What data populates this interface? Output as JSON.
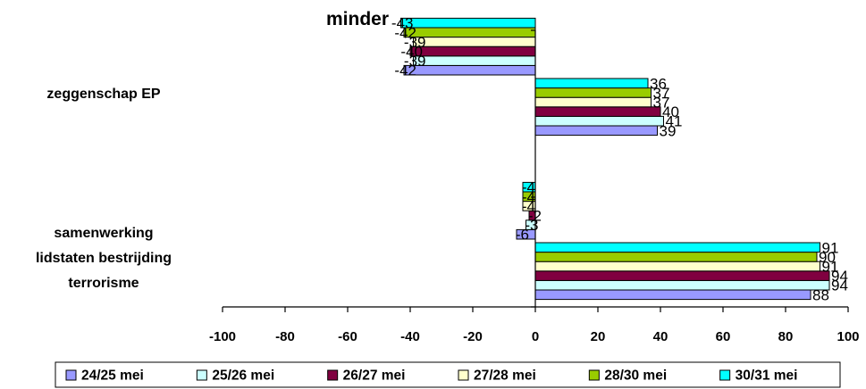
{
  "chart_data": {
    "type": "bar",
    "orientation": "horizontal",
    "title": "minder",
    "xlabel": "",
    "ylabel": "",
    "xlim": [
      -100,
      100
    ],
    "x_ticks": [
      -100,
      -80,
      -60,
      -40,
      -20,
      0,
      20,
      40,
      60,
      80,
      100
    ],
    "grid": false,
    "legend_position": "bottom",
    "categories": [
      {
        "label_lines": [
          "zeggenschap EP"
        ]
      },
      {
        "label_lines": [
          "samenwerking",
          "lidstaten bestrijding",
          "terrorisme"
        ]
      }
    ],
    "series": [
      {
        "name": "24/25 mei",
        "color": "#9999ff",
        "groups": [
          [
            -42,
            39
          ],
          [
            -6,
            88
          ]
        ]
      },
      {
        "name": "25/26 mei",
        "color": "#ccffff",
        "groups": [
          [
            -39,
            41
          ],
          [
            -3,
            94
          ]
        ]
      },
      {
        "name": "26/27 mei",
        "color": "#800040",
        "groups": [
          [
            -40,
            40
          ],
          [
            -2,
            94
          ]
        ]
      },
      {
        "name": "27/28 mei",
        "color": "#ffffcc",
        "groups": [
          [
            -39,
            37
          ],
          [
            -4,
            91
          ]
        ]
      },
      {
        "name": "28/30 mei",
        "color": "#99cc00",
        "groups": [
          [
            -42,
            37
          ],
          [
            -4,
            90
          ]
        ]
      },
      {
        "name": "30/31 mei",
        "color": "#00ffff",
        "groups": [
          [
            -43,
            36
          ],
          [
            -4,
            91
          ]
        ]
      }
    ]
  }
}
